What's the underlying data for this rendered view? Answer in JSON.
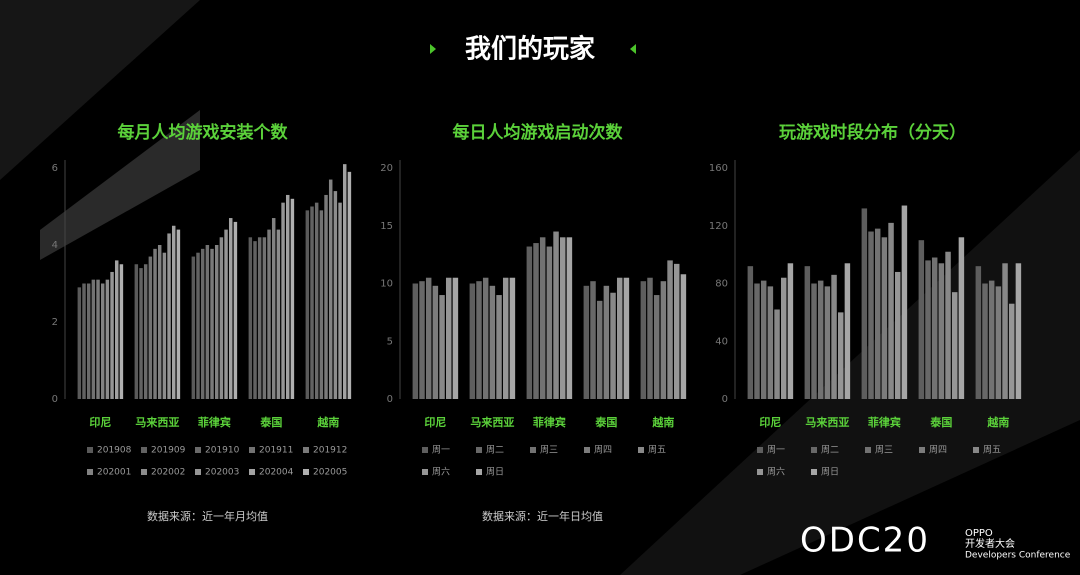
{
  "title": "我们的玩家",
  "chart_data": [
    {
      "type": "bar",
      "title": "每月人均游戏安装个数",
      "categories": [
        "印尼",
        "马来西亚",
        "菲律宾",
        "泰国",
        "越南"
      ],
      "ylim": [
        0,
        6
      ],
      "yticks": [
        0,
        2,
        4,
        6
      ],
      "source": "数据来源：近一年月均值",
      "series": [
        {
          "name": "201908",
          "color": "#5a5a5a",
          "values": [
            2.9,
            3.5,
            3.7,
            4.2,
            4.9
          ]
        },
        {
          "name": "201909",
          "color": "#626262",
          "values": [
            3.0,
            3.4,
            3.8,
            4.1,
            5.0
          ]
        },
        {
          "name": "201910",
          "color": "#6a6a6a",
          "values": [
            3.0,
            3.5,
            3.9,
            4.2,
            5.1
          ]
        },
        {
          "name": "201911",
          "color": "#727272",
          "values": [
            3.1,
            3.7,
            4.0,
            4.2,
            4.9
          ]
        },
        {
          "name": "201912",
          "color": "#7a7a7a",
          "values": [
            3.1,
            3.9,
            3.9,
            4.4,
            5.3
          ]
        },
        {
          "name": "202001",
          "color": "#828282",
          "values": [
            3.0,
            4.0,
            4.0,
            4.7,
            5.7
          ]
        },
        {
          "name": "202002",
          "color": "#8c8c8c",
          "values": [
            3.1,
            3.8,
            4.2,
            4.4,
            5.4
          ]
        },
        {
          "name": "202003",
          "color": "#969696",
          "values": [
            3.3,
            4.3,
            4.4,
            5.1,
            5.1
          ]
        },
        {
          "name": "202004",
          "color": "#a2a2a2",
          "values": [
            3.6,
            4.5,
            4.7,
            5.3,
            6.1
          ]
        },
        {
          "name": "202005",
          "color": "#b0b0b0",
          "values": [
            3.5,
            4.4,
            4.6,
            5.2,
            5.9
          ]
        }
      ]
    },
    {
      "type": "bar",
      "title": "每日人均游戏启动次数",
      "categories": [
        "印尼",
        "马来西亚",
        "菲律宾",
        "泰国",
        "越南"
      ],
      "ylim": [
        0,
        20
      ],
      "yticks": [
        0,
        5,
        10,
        15,
        20
      ],
      "source": "数据来源：近一年日均值",
      "series": [
        {
          "name": "周一",
          "color": "#5e5e5e",
          "values": [
            10,
            10,
            13.2,
            9.8,
            10.2
          ]
        },
        {
          "name": "周二",
          "color": "#686868",
          "values": [
            10.2,
            10.2,
            13.5,
            10.2,
            10.5
          ]
        },
        {
          "name": "周三",
          "color": "#727272",
          "values": [
            10.5,
            10.5,
            14,
            8.5,
            9
          ]
        },
        {
          "name": "周四",
          "color": "#7c7c7c",
          "values": [
            9.8,
            9.8,
            13.2,
            9.8,
            10.2
          ]
        },
        {
          "name": "周五",
          "color": "#888888",
          "values": [
            9,
            9,
            14.5,
            9.2,
            12
          ]
        },
        {
          "name": "周六",
          "color": "#969696",
          "values": [
            10.5,
            10.5,
            14,
            10.5,
            11.7
          ]
        },
        {
          "name": "周日",
          "color": "#a6a6a6",
          "values": [
            10.5,
            10.5,
            14,
            10.5,
            10.8
          ]
        }
      ]
    },
    {
      "type": "bar",
      "title": "玩游戏时段分布（分天）",
      "categories": [
        "印尼",
        "马来西亚",
        "菲律宾",
        "泰国",
        "越南"
      ],
      "ylim": [
        0,
        160
      ],
      "yticks": [
        0,
        40,
        80,
        120,
        160
      ],
      "series": [
        {
          "name": "周一",
          "color": "#5e5e5e",
          "values": [
            92,
            92,
            132,
            110,
            92
          ]
        },
        {
          "name": "周二",
          "color": "#686868",
          "values": [
            80,
            80,
            116,
            96,
            80
          ]
        },
        {
          "name": "周三",
          "color": "#727272",
          "values": [
            82,
            82,
            118,
            98,
            82
          ]
        },
        {
          "name": "周四",
          "color": "#7c7c7c",
          "values": [
            78,
            78,
            112,
            94,
            78
          ]
        },
        {
          "name": "周五",
          "color": "#888888",
          "values": [
            62,
            86,
            122,
            102,
            94
          ]
        },
        {
          "name": "周六",
          "color": "#969696",
          "values": [
            84,
            60,
            88,
            74,
            66
          ]
        },
        {
          "name": "周日",
          "color": "#a6a6a6",
          "values": [
            94,
            94,
            134,
            112,
            94
          ]
        }
      ]
    }
  ],
  "footer": {
    "logo": "ODC20",
    "brand": "OPPO",
    "event": "开发者大会",
    "event_en": "Developers Conference"
  }
}
